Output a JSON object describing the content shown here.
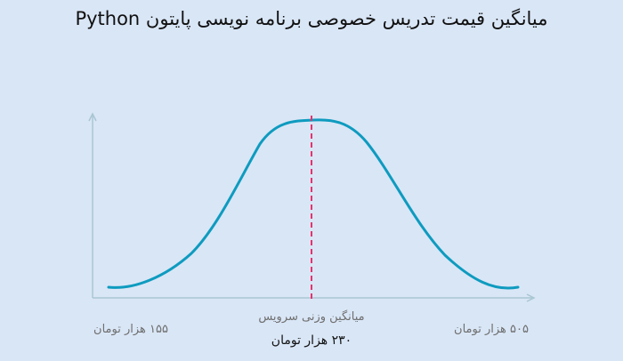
{
  "title": "میانگین قیمت تدریس خصوصی برنامه نویسی پایتون Python",
  "chart_data": {
    "type": "line",
    "title": "میانگین قیمت تدریس خصوصی برنامه نویسی پایتون Python",
    "x_min_label": "۱۵۵ هزار تومان",
    "x_max_label": "۵۰۵ هزار تومان",
    "mean_caption": "میانگین وزنی سرویس",
    "mean_value_label": "۲۳۰ هزار تومان",
    "x_range": [
      155,
      505
    ],
    "mean": 230,
    "grid": false,
    "colors": {
      "curve": "#0e9bbf",
      "mean_line": "#e6336f",
      "axis": "#a9c6d3",
      "axis_label": "#6f6f6f",
      "mean_label": "#111111"
    }
  }
}
